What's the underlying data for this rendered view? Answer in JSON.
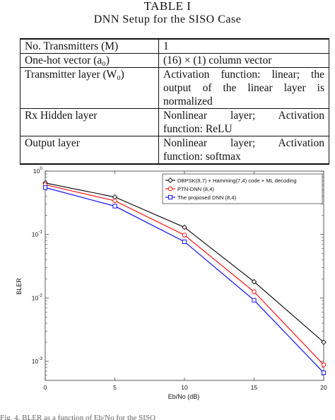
{
  "table": {
    "caption_line1": "TABLE I",
    "caption_line2": "DNN Setup for the SISO Case",
    "rows": [
      {
        "name": "No. Transmitters (M)",
        "value": "1"
      },
      {
        "name": "One-hot vector (a₀)",
        "value": "(16) × (1) column vector"
      },
      {
        "name": "Transmitter layer (W₀)",
        "value": "Activation function: linear; the output of the linear layer is normalized"
      },
      {
        "name": "Rx Hidden layer",
        "value": "Nonlinear layer; Activation function: ReLU"
      },
      {
        "name": "Output layer",
        "value": "Nonlinear layer; Activation function: softmax"
      }
    ]
  },
  "chart_data": {
    "type": "line",
    "title": "",
    "xlabel": "Eb/No (dB)",
    "ylabel": "BLER",
    "xlim": [
      0,
      20
    ],
    "ylim": [
      0.0005,
      1
    ],
    "yscale": "log",
    "x": [
      0,
      5,
      10,
      15,
      20
    ],
    "x_ticks": [
      "0",
      "5",
      "10",
      "15",
      "20"
    ],
    "y_ticks": [
      {
        "base": "10",
        "exp": "0",
        "value": 1
      },
      {
        "base": "10",
        "exp": "-1",
        "value": 0.1
      },
      {
        "base": "10",
        "exp": "-2",
        "value": 0.01
      },
      {
        "base": "10",
        "exp": "-3",
        "value": 0.001
      }
    ],
    "grid": false,
    "legend_position": "top-right",
    "series": [
      {
        "name": "DBPSK(8,7) + Hamming(7,4) code + ML decoding",
        "color": "#000000",
        "marker": "diamond",
        "values": [
          0.65,
          0.39,
          0.13,
          0.018,
          0.002
        ]
      },
      {
        "name": "PTN-DNN (8,4)",
        "color": "#ff0000",
        "marker": "circle",
        "values": [
          0.61,
          0.34,
          0.098,
          0.0125,
          0.00088
        ]
      },
      {
        "name": "The proposed DNN (8,4)",
        "color": "#0000ff",
        "marker": "square",
        "values": [
          0.55,
          0.28,
          0.077,
          0.0092,
          0.00066
        ]
      }
    ]
  },
  "figure_caption": "Fig. 4. BLER as a function of Eb/No for the SISO"
}
